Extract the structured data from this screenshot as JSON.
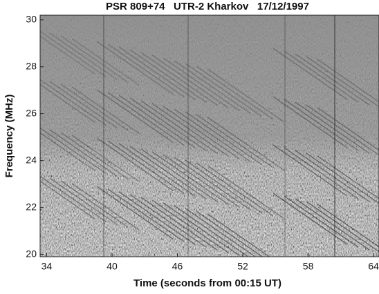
{
  "chart_data": {
    "type": "spectrogram",
    "title": "PSR 809+74   UTR-2 Kharkov   17/12/1997",
    "x_label": "Time (seconds from 00:15 UT)",
    "y_label": "Frequency (MHz)",
    "xlim": [
      33.4,
      64.5
    ],
    "xticks": [
      34,
      40,
      46,
      52,
      58,
      64
    ],
    "ylim": [
      19.9,
      30.2
    ],
    "yticks": [
      20,
      22,
      24,
      26,
      28,
      30
    ]
  }
}
